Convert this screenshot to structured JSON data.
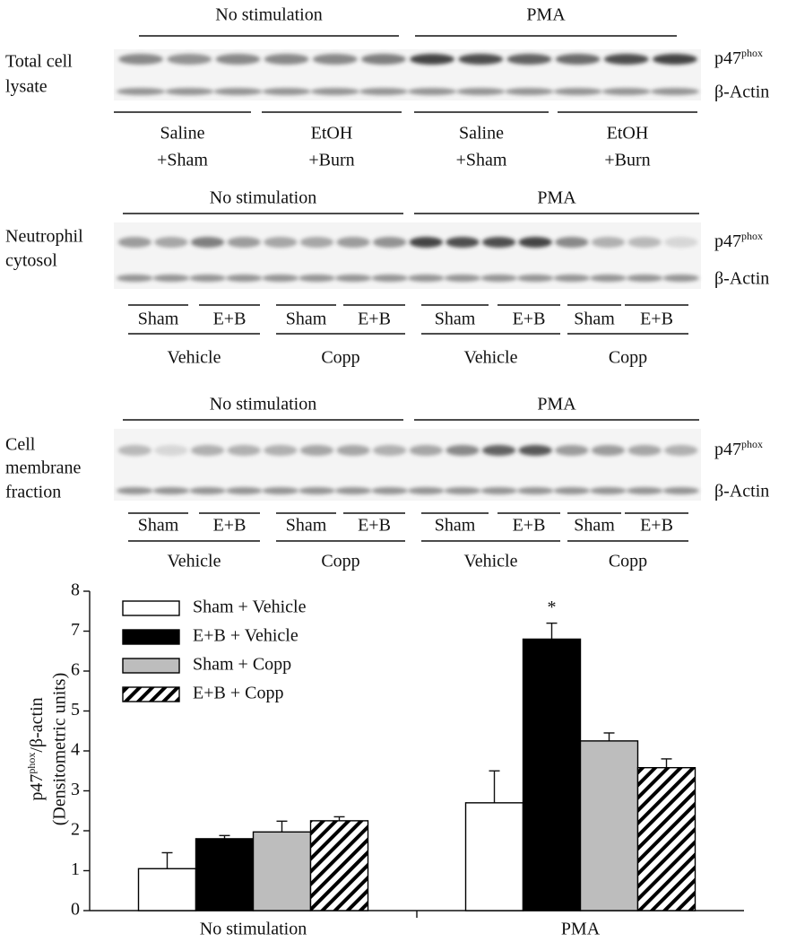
{
  "blots": [
    {
      "label": [
        "Total cell",
        "lysate"
      ],
      "groups": [
        "No stimulation",
        "PMA"
      ],
      "protein": {
        "base": "p47",
        "sup": "phox"
      },
      "control": "β-Actin",
      "lanes": [
        [
          "Saline",
          "+Sham"
        ],
        [
          "EtOH",
          "+Burn"
        ],
        [
          "Saline",
          "+Sham"
        ],
        [
          "EtOH",
          "+Burn"
        ]
      ]
    },
    {
      "label": [
        "Neutrophil",
        "cytosol"
      ],
      "groups": [
        "No stimulation",
        "PMA"
      ],
      "protein": {
        "base": "p47",
        "sup": "phox"
      },
      "control": "β-Actin",
      "subgroups": [
        "Sham",
        "E+B",
        "Sham",
        "E+B",
        "Sham",
        "E+B",
        "Sham",
        "E+B"
      ],
      "treatments": [
        "Vehicle",
        "Copp",
        "Vehicle",
        "Copp"
      ]
    },
    {
      "label": [
        "Cell",
        "membrane",
        "fraction"
      ],
      "groups": [
        "No stimulation",
        "PMA"
      ],
      "protein": {
        "base": "p47",
        "sup": "phox"
      },
      "control": "β-Actin",
      "subgroups": [
        "Sham",
        "E+B",
        "Sham",
        "E+B",
        "Sham",
        "E+B",
        "Sham",
        "E+B"
      ],
      "treatments": [
        "Vehicle",
        "Copp",
        "Vehicle",
        "Copp"
      ]
    }
  ],
  "chart_data": {
    "type": "bar",
    "y_label": {
      "base": "p47",
      "sup": "phox",
      "rest": "/β-actin",
      "line2": "(Densitometric units)"
    },
    "categories": [
      "No stimulation",
      "PMA"
    ],
    "series": [
      {
        "name": "Sham + Vehicle",
        "color": "#ffffff",
        "values": [
          1.05,
          2.7
        ],
        "errors": [
          0.4,
          0.8
        ]
      },
      {
        "name": "E+B + Vehicle",
        "color": "#000000",
        "values": [
          1.8,
          6.8
        ],
        "errors": [
          0.08,
          0.4
        ]
      },
      {
        "name": "Sham + Copp",
        "color": "#bdbdbd",
        "values": [
          1.97,
          4.25
        ],
        "errors": [
          0.27,
          0.2
        ]
      },
      {
        "name": "E+B + Copp",
        "color": "#ffffff",
        "hatch": true,
        "values": [
          2.25,
          3.58
        ],
        "errors": [
          0.1,
          0.22
        ]
      }
    ],
    "annotation": "*",
    "ylim": [
      0,
      8
    ],
    "yticks": [
      0,
      1,
      2,
      3,
      4,
      5,
      6,
      7,
      8
    ],
    "grid": false
  }
}
